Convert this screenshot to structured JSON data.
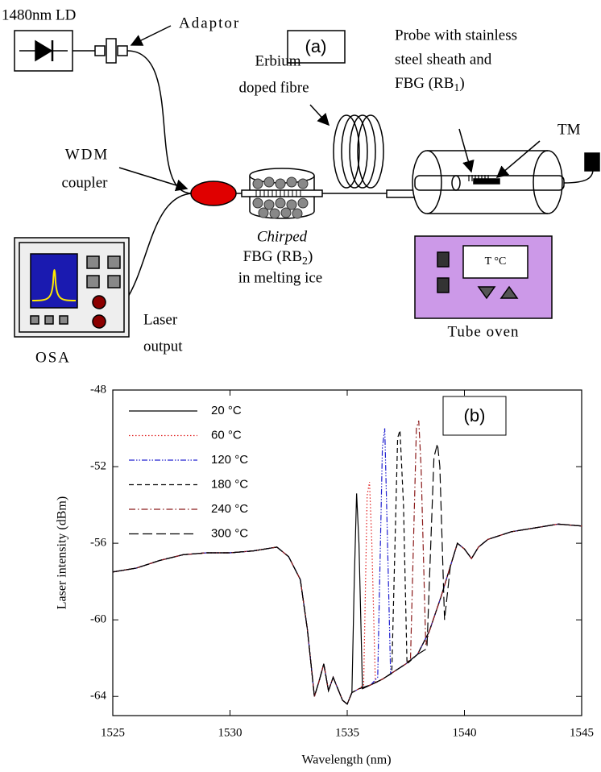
{
  "diagram": {
    "label": "(a)",
    "laser_diode": "1480nm LD",
    "adaptor": "Adaptor",
    "erbium_fibre": [
      "Erbium",
      "doped fibre"
    ],
    "probe": [
      "Probe with stainless",
      "steel sheath and"
    ],
    "probe_fbg": [
      "FBG (RB",
      "1",
      ")"
    ],
    "tm": "TM",
    "wdm": [
      "WDM",
      "coupler"
    ],
    "chirped": "Chirped",
    "chirped_fbg": [
      "FBG (RB",
      "2",
      ")"
    ],
    "ice": "in melting ice",
    "oven": "Tube oven",
    "oven_display": "T °C",
    "osa": "OSA",
    "laser_output": [
      "Laser",
      "output"
    ]
  },
  "chart_data": {
    "type": "line",
    "annotation": "(b)",
    "xlabel": "Wavelength (nm)",
    "ylabel": "Laser intensity (dBm)",
    "xlim": [
      1525,
      1545
    ],
    "xticks": [
      1525,
      1530,
      1535,
      1540,
      1545
    ],
    "ylim": [
      -65,
      -48
    ],
    "yticks": [
      -48,
      -52,
      -56,
      -60,
      -64
    ],
    "series": [
      {
        "name": "20 °C",
        "color": "#000000",
        "style": "solid",
        "x": [
          1525,
          1526,
          1527,
          1528,
          1529,
          1530,
          1531,
          1532,
          1532.5,
          1533,
          1533.3,
          1533.6,
          1533.8,
          1534,
          1534.2,
          1534.4,
          1534.6,
          1534.8,
          1535,
          1535.2,
          1535.3,
          1535.4,
          1535.5,
          1535.65,
          1536,
          1536.5,
          1537,
          1537.5,
          1538,
          1538.5,
          1539,
          1539.4,
          1539.7,
          1540,
          1540.3,
          1540.6,
          1541,
          1542,
          1543,
          1544,
          1545
        ],
        "values": [
          -57.5,
          -57.3,
          -56.9,
          -56.6,
          -56.5,
          -56.5,
          -56.4,
          -56.2,
          -56.7,
          -57.9,
          -60.5,
          -64.0,
          -63.2,
          -62.3,
          -63.7,
          -63.0,
          -63.6,
          -64.2,
          -64.4,
          -63.8,
          -58,
          -53.4,
          -56,
          -63.6,
          -63.4,
          -63.1,
          -62.7,
          -62.3,
          -61.8,
          -60.6,
          -58.8,
          -57.2,
          -56.0,
          -56.3,
          -56.8,
          -56.2,
          -55.8,
          -55.4,
          -55.2,
          -55.0,
          -55.1
        ]
      },
      {
        "name": "60 °C",
        "color": "#e02020",
        "style": "dotted",
        "x": [
          1525,
          1526,
          1527,
          1528,
          1529,
          1530,
          1531,
          1532,
          1532.5,
          1533,
          1533.3,
          1533.6,
          1533.8,
          1534,
          1534.2,
          1534.4,
          1534.6,
          1534.8,
          1535,
          1535.2,
          1535.5,
          1535.7,
          1535.85,
          1535.95,
          1536.05,
          1536.2,
          1536.5,
          1537,
          1537.5,
          1538,
          1538.5,
          1539,
          1539.4,
          1539.7,
          1540,
          1540.3,
          1540.6,
          1541,
          1542,
          1543,
          1544,
          1545
        ],
        "values": [
          -57.5,
          -57.3,
          -56.9,
          -56.6,
          -56.5,
          -56.5,
          -56.4,
          -56.2,
          -56.7,
          -57.9,
          -60.5,
          -64.0,
          -63.2,
          -62.3,
          -63.7,
          -63.0,
          -63.6,
          -64.2,
          -64.4,
          -63.8,
          -63.6,
          -63.4,
          -53.5,
          -52.8,
          -56,
          -63.3,
          -63.1,
          -62.7,
          -62.3,
          -61.8,
          -60.6,
          -58.8,
          -57.2,
          -56.0,
          -56.3,
          -56.8,
          -56.2,
          -55.8,
          -55.4,
          -55.2,
          -55.0,
          -55.1
        ]
      },
      {
        "name": "120 °C",
        "color": "#2020d0",
        "style": "dash-dot-dot",
        "x": [
          1525,
          1526,
          1527,
          1528,
          1529,
          1530,
          1531,
          1532,
          1532.5,
          1533,
          1533.3,
          1533.6,
          1533.8,
          1534,
          1534.2,
          1534.4,
          1534.6,
          1534.8,
          1535,
          1535.2,
          1535.5,
          1536,
          1536.3,
          1536.5,
          1536.6,
          1536.7,
          1536.85,
          1537,
          1537.5,
          1538,
          1538.5,
          1539,
          1539.4,
          1539.7,
          1540,
          1540.3,
          1540.6,
          1541,
          1542,
          1543,
          1544,
          1545
        ],
        "values": [
          -57.5,
          -57.3,
          -56.9,
          -56.6,
          -56.5,
          -56.5,
          -56.4,
          -56.2,
          -56.7,
          -57.9,
          -60.5,
          -64.0,
          -63.2,
          -62.3,
          -63.7,
          -63.0,
          -63.6,
          -64.2,
          -64.4,
          -63.8,
          -63.6,
          -63.4,
          -63.0,
          -51,
          -50.0,
          -55,
          -62.8,
          -62.7,
          -62.3,
          -61.8,
          -60.6,
          -58.8,
          -57.2,
          -56.0,
          -56.3,
          -56.8,
          -56.2,
          -55.8,
          -55.4,
          -55.2,
          -55.0,
          -55.1
        ]
      },
      {
        "name": "180 °C",
        "color": "#000000",
        "style": "dashed",
        "x": [
          1525,
          1526,
          1527,
          1528,
          1529,
          1530,
          1531,
          1532,
          1532.5,
          1533,
          1533.3,
          1533.6,
          1533.8,
          1534,
          1534.2,
          1534.4,
          1534.6,
          1534.8,
          1535,
          1535.2,
          1535.5,
          1536,
          1536.5,
          1536.9,
          1537.15,
          1537.25,
          1537.4,
          1537.55,
          1538,
          1538.5,
          1539,
          1539.4,
          1539.7,
          1540,
          1540.3,
          1540.6,
          1541,
          1542,
          1543,
          1544,
          1545
        ],
        "values": [
          -57.5,
          -57.3,
          -56.9,
          -56.6,
          -56.5,
          -56.5,
          -56.4,
          -56.2,
          -56.7,
          -57.9,
          -60.5,
          -64.0,
          -63.2,
          -62.3,
          -63.7,
          -63.0,
          -63.6,
          -64.2,
          -64.4,
          -63.8,
          -63.6,
          -63.4,
          -63.1,
          -62.8,
          -50.5,
          -50.1,
          -54,
          -62.3,
          -61.8,
          -60.6,
          -58.8,
          -57.2,
          -56.0,
          -56.3,
          -56.8,
          -56.2,
          -55.8,
          -55.4,
          -55.2,
          -55.0,
          -55.1
        ]
      },
      {
        "name": "240 °C",
        "color": "#8b1a1a",
        "style": "dash-dot",
        "x": [
          1525,
          1526,
          1527,
          1528,
          1529,
          1530,
          1531,
          1532,
          1532.5,
          1533,
          1533.3,
          1533.6,
          1533.8,
          1534,
          1534.2,
          1534.4,
          1534.6,
          1534.8,
          1535,
          1535.2,
          1535.5,
          1536,
          1536.5,
          1537,
          1537.5,
          1537.7,
          1537.95,
          1538.05,
          1538.15,
          1538.35,
          1538.5,
          1539,
          1539.4,
          1539.7,
          1540,
          1540.3,
          1540.6,
          1541,
          1542,
          1543,
          1544,
          1545
        ],
        "values": [
          -57.5,
          -57.3,
          -56.9,
          -56.6,
          -56.5,
          -56.5,
          -56.4,
          -56.2,
          -56.7,
          -57.9,
          -60.5,
          -64.0,
          -63.2,
          -62.3,
          -63.7,
          -63.0,
          -63.6,
          -64.2,
          -64.4,
          -63.8,
          -63.6,
          -63.4,
          -63.1,
          -62.7,
          -62.3,
          -62.0,
          -50,
          -49.6,
          -52,
          -61.3,
          -60.6,
          -58.8,
          -57.2,
          -56.0,
          -56.3,
          -56.8,
          -56.2,
          -55.8,
          -55.4,
          -55.2,
          -55.0,
          -55.1
        ]
      },
      {
        "name": "300 °C",
        "color": "#000000",
        "style": "long-dash",
        "x": [
          1525,
          1526,
          1527,
          1528,
          1529,
          1530,
          1531,
          1532,
          1532.5,
          1533,
          1533.3,
          1533.6,
          1533.8,
          1534,
          1534.2,
          1534.4,
          1534.6,
          1534.8,
          1535,
          1535.2,
          1535.5,
          1536,
          1536.5,
          1537,
          1537.5,
          1538,
          1538.4,
          1538.7,
          1538.85,
          1538.95,
          1539.15,
          1539.4,
          1539.7,
          1540,
          1540.3,
          1540.6,
          1541,
          1542,
          1543,
          1544,
          1545
        ],
        "values": [
          -57.5,
          -57.3,
          -56.9,
          -56.6,
          -56.5,
          -56.5,
          -56.4,
          -56.2,
          -56.7,
          -57.9,
          -60.5,
          -64.0,
          -63.2,
          -62.3,
          -63.7,
          -63.0,
          -63.6,
          -64.2,
          -64.4,
          -63.8,
          -63.6,
          -63.4,
          -63.1,
          -62.7,
          -62.3,
          -61.8,
          -61.5,
          -51.5,
          -50.8,
          -52,
          -60,
          -57.2,
          -56.0,
          -56.3,
          -56.8,
          -56.2,
          -55.8,
          -55.4,
          -55.2,
          -55.0,
          -55.1
        ]
      }
    ]
  }
}
